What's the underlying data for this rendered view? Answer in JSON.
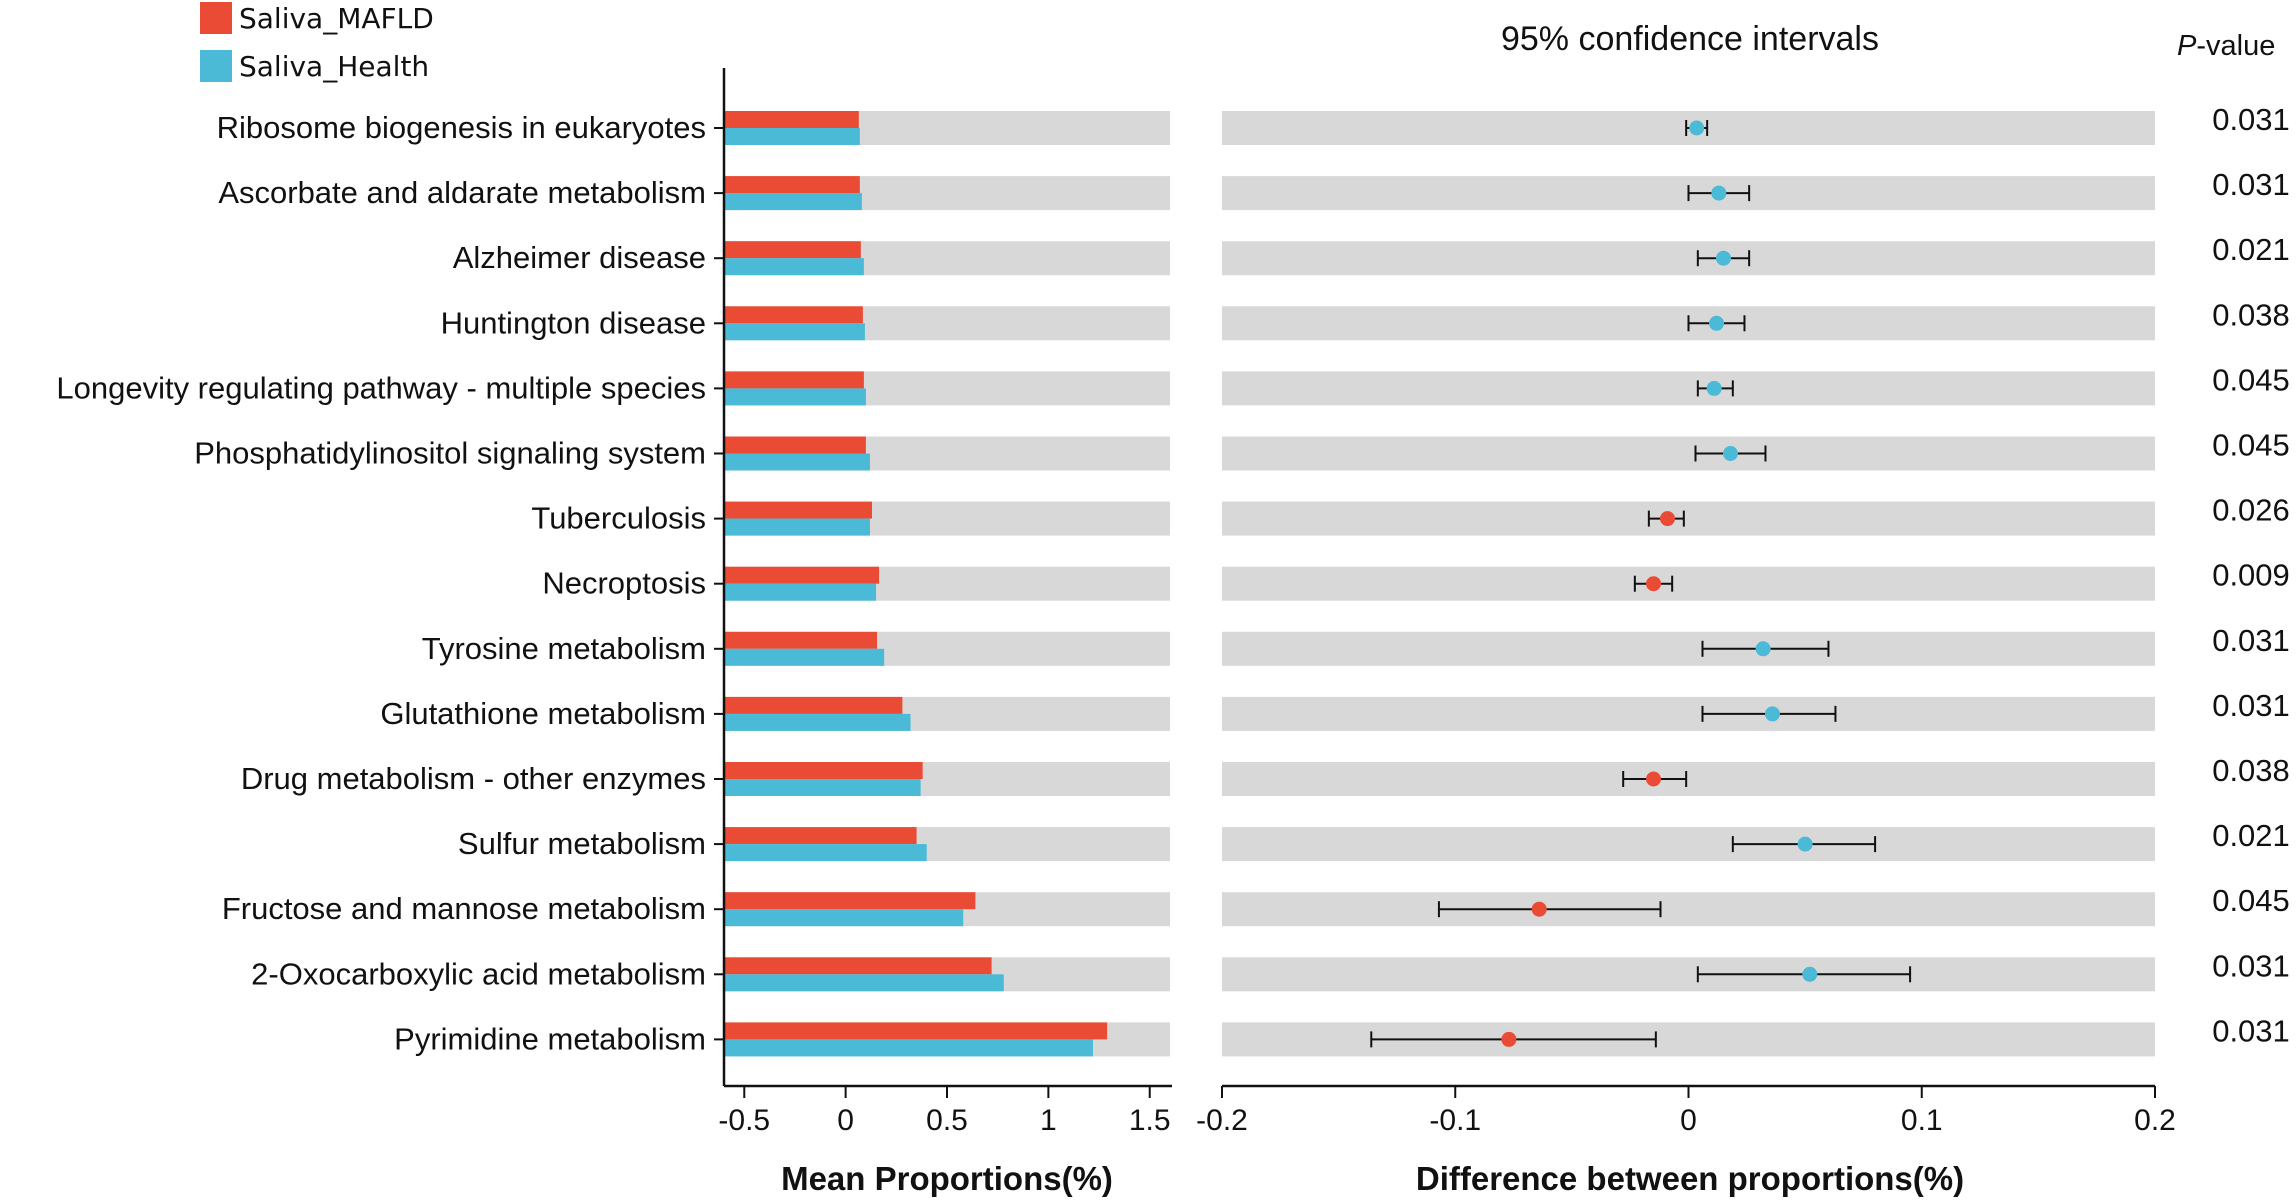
{
  "chart_data": {
    "type": "bar",
    "legend": [
      {
        "name": "Saliva_MAFLD",
        "color": "#e94b35"
      },
      {
        "name": "Saliva_Health",
        "color": "#4bbad6"
      }
    ],
    "categories": [
      "Ribosome biogenesis in eukaryotes",
      "Ascorbate and aldarate metabolism",
      "Alzheimer disease",
      "Huntington disease",
      "Longevity regulating pathway - multiple species",
      "Phosphatidylinositol signaling system",
      "Tuberculosis",
      "Necroptosis",
      "Tyrosine metabolism",
      "Glutathione metabolism",
      "Drug metabolism - other enzymes",
      "Sulfur metabolism",
      "Fructose and mannose metabolism",
      "2-Oxocarboxylic acid metabolism",
      "Pyrimidine metabolism"
    ],
    "mean_proportions": {
      "xlabel": "Mean Proportions(%)",
      "xlim": [
        -0.6,
        1.6
      ],
      "ticks": [
        -0.5,
        0,
        0.5,
        1,
        1.5
      ],
      "tick_labels": [
        "-0.5",
        "0",
        "0.5",
        "1",
        "1.5"
      ],
      "series": [
        {
          "name": "Saliva_MAFLD",
          "color": "#e94b35",
          "values": [
            0.065,
            0.07,
            0.075,
            0.085,
            0.09,
            0.1,
            0.13,
            0.165,
            0.155,
            0.28,
            0.38,
            0.35,
            0.64,
            0.72,
            1.29
          ]
        },
        {
          "name": "Saliva_Health",
          "color": "#4bbad6",
          "values": [
            0.07,
            0.08,
            0.09,
            0.095,
            0.1,
            0.12,
            0.12,
            0.15,
            0.19,
            0.32,
            0.37,
            0.4,
            0.58,
            0.78,
            1.22
          ]
        }
      ]
    },
    "difference": {
      "title": "95% confidence intervals",
      "xlabel": "Difference between proportions(%)",
      "xlim": [
        -0.2,
        0.2
      ],
      "ticks": [
        -0.2,
        -0.1,
        0,
        0.1,
        0.2
      ],
      "tick_labels": [
        "-0.2",
        "-0.1",
        "0",
        "0.1",
        "0.2"
      ],
      "points": [
        {
          "value": 0.0035,
          "lower": -0.001,
          "upper": 0.008,
          "group": "Saliva_Health"
        },
        {
          "value": 0.013,
          "lower": 0.0,
          "upper": 0.026,
          "group": "Saliva_Health"
        },
        {
          "value": 0.015,
          "lower": 0.004,
          "upper": 0.026,
          "group": "Saliva_Health"
        },
        {
          "value": 0.012,
          "lower": 0.0,
          "upper": 0.024,
          "group": "Saliva_Health"
        },
        {
          "value": 0.011,
          "lower": 0.004,
          "upper": 0.019,
          "group": "Saliva_Health"
        },
        {
          "value": 0.018,
          "lower": 0.003,
          "upper": 0.033,
          "group": "Saliva_Health"
        },
        {
          "value": -0.009,
          "lower": -0.017,
          "upper": -0.002,
          "group": "Saliva_MAFLD"
        },
        {
          "value": -0.015,
          "lower": -0.023,
          "upper": -0.007,
          "group": "Saliva_MAFLD"
        },
        {
          "value": 0.032,
          "lower": 0.006,
          "upper": 0.06,
          "group": "Saliva_Health"
        },
        {
          "value": 0.036,
          "lower": 0.006,
          "upper": 0.063,
          "group": "Saliva_Health"
        },
        {
          "value": -0.015,
          "lower": -0.028,
          "upper": -0.001,
          "group": "Saliva_MAFLD"
        },
        {
          "value": 0.05,
          "lower": 0.019,
          "upper": 0.08,
          "group": "Saliva_Health"
        },
        {
          "value": -0.064,
          "lower": -0.107,
          "upper": -0.012,
          "group": "Saliva_MAFLD"
        },
        {
          "value": 0.052,
          "lower": 0.004,
          "upper": 0.095,
          "group": "Saliva_Health"
        },
        {
          "value": -0.077,
          "lower": -0.136,
          "upper": -0.014,
          "group": "Saliva_MAFLD"
        }
      ]
    },
    "p_value_header_italic": "P",
    "p_value_header_rest": "-value",
    "p_values": [
      "0.031",
      "0.031",
      "0.021",
      "0.038",
      "0.045",
      "0.045",
      "0.026",
      "0.009",
      "0.031",
      "0.031",
      "0.038",
      "0.021",
      "0.045",
      "0.031",
      "0.031"
    ]
  }
}
